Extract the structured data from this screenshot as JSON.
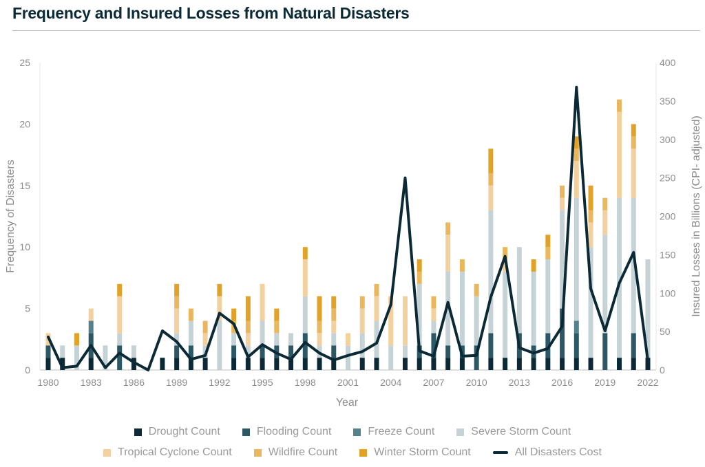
{
  "title": "Frequency and Insured Losses from Natural Disasters",
  "chart_data": {
    "type": "bar",
    "stacked": true,
    "x": [
      1980,
      1981,
      1982,
      1983,
      1984,
      1985,
      1986,
      1987,
      1988,
      1989,
      1990,
      1991,
      1992,
      1993,
      1994,
      1995,
      1996,
      1997,
      1998,
      1999,
      2000,
      2001,
      2002,
      2003,
      2004,
      2005,
      2006,
      2007,
      2008,
      2009,
      2010,
      2011,
      2012,
      2013,
      2014,
      2015,
      2016,
      2017,
      2018,
      2019,
      2020,
      2021,
      2022
    ],
    "x_ticks": [
      "1980",
      "1983",
      "1986",
      "1989",
      "1992",
      "1995",
      "1998",
      "2001",
      "2004",
      "2007",
      "2010",
      "2013",
      "2016",
      "2019",
      "2022"
    ],
    "xlabel": "Year",
    "ylabel": "Frequency of Disasters",
    "ylim": [
      0,
      25
    ],
    "y_ticks": [
      "0",
      "5",
      "10",
      "15",
      "20",
      "25"
    ],
    "y2label": "Insured Losses in Billions (CPI- adjusted)",
    "y2lim": [
      0,
      400
    ],
    "y2_ticks": [
      "0",
      "50",
      "100",
      "150",
      "200",
      "250",
      "300",
      "350",
      "400"
    ],
    "grid": true,
    "legend_position": "bottom",
    "series": [
      {
        "name": "Drought Count",
        "color": "#0b2a36",
        "values": [
          1,
          1,
          0,
          1,
          0,
          0,
          1,
          0,
          1,
          1,
          1,
          1,
          0,
          1,
          1,
          1,
          1,
          1,
          1,
          1,
          1,
          0,
          1,
          1,
          0,
          1,
          1,
          1,
          1,
          1,
          0,
          1,
          1,
          1,
          1,
          1,
          1,
          1,
          1,
          0,
          1,
          1,
          1
        ]
      },
      {
        "name": "Flooding Count",
        "color": "#2c5765",
        "values": [
          1,
          0,
          0,
          2,
          0,
          2,
          0,
          0,
          0,
          1,
          1,
          0,
          0,
          1,
          0,
          1,
          1,
          1,
          2,
          0,
          1,
          0,
          0,
          0,
          0,
          0,
          1,
          2,
          1,
          1,
          2,
          2,
          0,
          2,
          1,
          2,
          4,
          2,
          0,
          3,
          0,
          2,
          0
        ]
      },
      {
        "name": "Freeze Count",
        "color": "#55818c",
        "values": [
          0,
          0,
          0,
          1,
          0,
          0,
          0,
          0,
          0,
          0,
          0,
          0,
          0,
          0,
          0,
          0,
          0,
          0,
          0,
          0,
          0,
          0,
          0,
          0,
          0,
          0,
          0,
          0,
          0,
          0,
          0,
          0,
          0,
          0,
          0,
          0,
          0,
          1,
          0,
          0,
          0,
          0,
          0
        ]
      },
      {
        "name": "Severe Storm Count",
        "color": "#c5d3d7",
        "values": [
          0,
          1,
          2,
          0,
          2,
          1,
          1,
          0,
          0,
          1,
          2,
          1,
          4,
          1,
          1,
          2,
          1,
          1,
          3,
          1,
          1,
          2,
          2,
          3,
          2,
          1,
          5,
          1,
          6,
          6,
          4,
          10,
          7,
          7,
          6,
          6,
          8,
          10,
          9,
          8,
          13,
          11,
          8
        ]
      },
      {
        "name": "Tropical Cyclone Count",
        "color": "#f3d19e",
        "values": [
          1,
          0,
          0,
          1,
          0,
          3,
          0,
          0,
          0,
          2,
          0,
          1,
          2,
          0,
          1,
          3,
          0,
          0,
          3,
          1,
          1,
          1,
          2,
          2,
          4,
          4,
          0,
          1,
          3,
          0,
          0,
          2,
          1,
          0,
          0,
          0,
          1,
          3,
          2,
          2,
          7,
          4,
          0
        ]
      },
      {
        "name": "Wildfire Count",
        "color": "#eab75f",
        "values": [
          0,
          0,
          0,
          0,
          0,
          0,
          0,
          0,
          0,
          1,
          1,
          1,
          0,
          1,
          1,
          0,
          1,
          0,
          0,
          1,
          1,
          0,
          1,
          1,
          0,
          0,
          1,
          1,
          1,
          1,
          1,
          1,
          1,
          0,
          0,
          1,
          1,
          1,
          1,
          1,
          1,
          1,
          0
        ]
      },
      {
        "name": "Winter Storm Count",
        "color": "#e1a228",
        "values": [
          0,
          0,
          1,
          0,
          0,
          1,
          0,
          0,
          0,
          1,
          0,
          0,
          1,
          1,
          2,
          0,
          1,
          0,
          1,
          2,
          1,
          0,
          0,
          0,
          0,
          0,
          1,
          0,
          0,
          0,
          0,
          2,
          0,
          0,
          1,
          1,
          0,
          1,
          2,
          0,
          0,
          1,
          0
        ]
      }
    ],
    "line": {
      "name": "All Disasters Cost",
      "color": "#0b2a36",
      "axis": "y2",
      "values": [
        43,
        3,
        5,
        32,
        3,
        22,
        10,
        0,
        51,
        37,
        14,
        19,
        74,
        60,
        17,
        33,
        22,
        14,
        36,
        22,
        13,
        19,
        24,
        35,
        85,
        250,
        25,
        18,
        88,
        18,
        19,
        95,
        148,
        29,
        22,
        28,
        57,
        368,
        106,
        51,
        113,
        153,
        12
      ]
    }
  }
}
